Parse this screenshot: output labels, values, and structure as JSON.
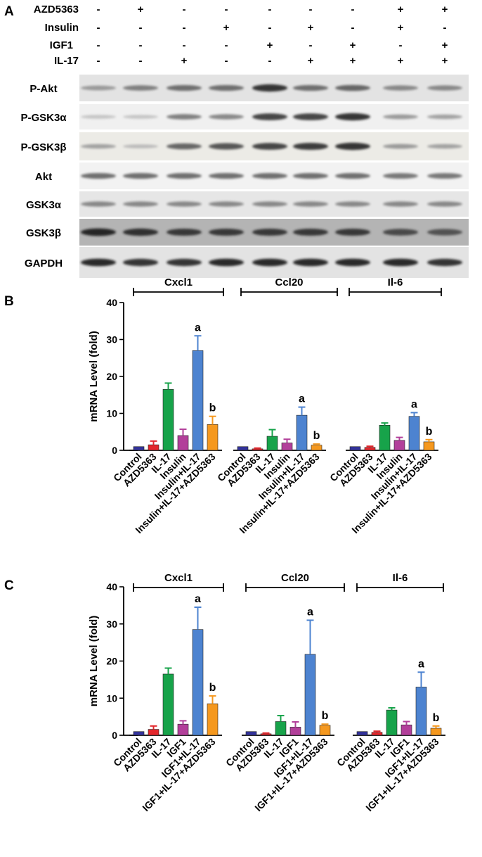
{
  "blot": {
    "panel": "A",
    "treatments": [
      "AZD5363",
      "Insulin",
      "IGF1",
      "IL-17"
    ],
    "signs": [
      [
        "-",
        "+",
        "-",
        "-",
        "-",
        "-",
        "-",
        "+",
        "+"
      ],
      [
        "-",
        "-",
        "-",
        "+",
        "-",
        "+",
        "-",
        "+",
        "-"
      ],
      [
        "-",
        "-",
        "-",
        "-",
        "+",
        "-",
        "+",
        "-",
        "+"
      ],
      [
        "-",
        "-",
        "+",
        "-",
        "-",
        "+",
        "+",
        "+",
        "+"
      ]
    ],
    "bands": [
      {
        "label": "P-Akt",
        "intensity": [
          0.3,
          0.45,
          0.55,
          0.55,
          0.9,
          0.55,
          0.6,
          0.4,
          0.4
        ],
        "bg": "#e3e3e3"
      },
      {
        "label": "P-GSK3α",
        "intensity": [
          0.05,
          0.05,
          0.45,
          0.4,
          0.8,
          0.8,
          0.9,
          0.3,
          0.25
        ],
        "bg": "#f0f0f0"
      },
      {
        "label": "P-GSK3β",
        "intensity": [
          0.25,
          0.1,
          0.6,
          0.7,
          0.8,
          0.85,
          0.9,
          0.3,
          0.25
        ],
        "bg": "#ecebe6"
      },
      {
        "label": "Akt",
        "intensity": [
          0.55,
          0.55,
          0.55,
          0.55,
          0.55,
          0.55,
          0.55,
          0.5,
          0.5
        ],
        "bg": "#f2f2f2"
      },
      {
        "label": "GSK3α",
        "intensity": [
          0.4,
          0.4,
          0.4,
          0.4,
          0.4,
          0.4,
          0.4,
          0.4,
          0.4
        ],
        "bg": "#e6e6e6"
      },
      {
        "label": "GSK3β",
        "intensity": [
          0.95,
          0.9,
          0.85,
          0.85,
          0.85,
          0.85,
          0.85,
          0.75,
          0.7
        ],
        "bg": "#b4b4b4"
      },
      {
        "label": "GAPDH",
        "intensity": [
          0.95,
          0.9,
          0.9,
          0.95,
          0.95,
          0.95,
          0.95,
          0.95,
          0.9
        ],
        "bg": "#e3e3e3"
      }
    ]
  },
  "colors": [
    "#33339a",
    "#e3262b",
    "#17a34a",
    "#b23f9a",
    "#4d83d0",
    "#f5981e"
  ],
  "chart_data": [
    {
      "panel": "B",
      "type": "bar",
      "ylabel": "mRNA Level (fold)",
      "ylim": [
        0,
        40
      ],
      "yticks": [
        0,
        10,
        20,
        30,
        40
      ],
      "groups": [
        {
          "name": "Cxcl1",
          "categories": [
            "Control",
            "AZD5363",
            "IL-17",
            "Insulin",
            "Insulin+IL-17",
            "Insulin+IL-17+AZD5363"
          ],
          "values": [
            1,
            1.5,
            16.5,
            4,
            27,
            7
          ],
          "errors": [
            0,
            1,
            1.7,
            1.7,
            4,
            2.2
          ],
          "annotations": [
            "",
            "",
            "",
            "",
            "a",
            "b"
          ]
        },
        {
          "name": "Ccl20",
          "categories": [
            "Control",
            "AZD5363",
            "IL-17",
            "Insulin",
            "Insulin+IL-17",
            "Insulin+IL-17+AZD5363"
          ],
          "values": [
            1,
            0.4,
            3.8,
            2,
            9.5,
            1.4
          ],
          "errors": [
            0,
            0.2,
            1.8,
            1,
            2.2,
            0.3
          ],
          "annotations": [
            "",
            "",
            "",
            "",
            "a",
            "b"
          ]
        },
        {
          "name": "Il-6",
          "categories": [
            "Control",
            "AZD5363",
            "IL-17",
            "Insulin",
            "Insulin+IL-17",
            "Insulin+IL-17+AZD5363"
          ],
          "values": [
            1,
            0.8,
            6.8,
            2.7,
            9.2,
            2.3
          ],
          "errors": [
            0,
            0.3,
            0.6,
            0.8,
            1,
            0.6
          ],
          "annotations": [
            "",
            "",
            "",
            "",
            "a",
            "b"
          ]
        }
      ]
    },
    {
      "panel": "C",
      "type": "bar",
      "ylabel": "mRNA Level (fold)",
      "ylim": [
        0,
        40
      ],
      "yticks": [
        0,
        10,
        20,
        30,
        40
      ],
      "groups": [
        {
          "name": "Cxcl1",
          "categories": [
            "Control",
            "AZD5363",
            "IL-17",
            "IGF1",
            "IGF1+IL-17",
            "IGF1+IL-17+AZD5363"
          ],
          "values": [
            1,
            1.6,
            16.5,
            3,
            28.5,
            8.5
          ],
          "errors": [
            0,
            0.9,
            1.6,
            0.9,
            6,
            2.1
          ],
          "annotations": [
            "",
            "",
            "",
            "",
            "a",
            "b"
          ]
        },
        {
          "name": "Ccl20",
          "categories": [
            "Control",
            "AZD5363",
            "IL-17",
            "IGF1",
            "IGF1+IL-17",
            "IGF1+IL-17+AZD5363"
          ],
          "values": [
            1,
            0.4,
            3.7,
            2.2,
            21.8,
            2.7
          ],
          "errors": [
            0,
            0.2,
            1.6,
            1.4,
            9.2,
            0.3
          ],
          "annotations": [
            "",
            "",
            "",
            "",
            "a",
            "b"
          ]
        },
        {
          "name": "Il-6",
          "categories": [
            "Control",
            "AZD5363",
            "IL-17",
            "IGF1",
            "IGF1+IL-17",
            "IGF1+IL-17+AZD5363"
          ],
          "values": [
            1,
            0.8,
            6.8,
            2.8,
            13,
            1.9
          ],
          "errors": [
            0,
            0.3,
            0.6,
            0.9,
            4,
            0.6
          ],
          "annotations": [
            "",
            "",
            "",
            "",
            "a",
            "b"
          ]
        }
      ]
    }
  ]
}
